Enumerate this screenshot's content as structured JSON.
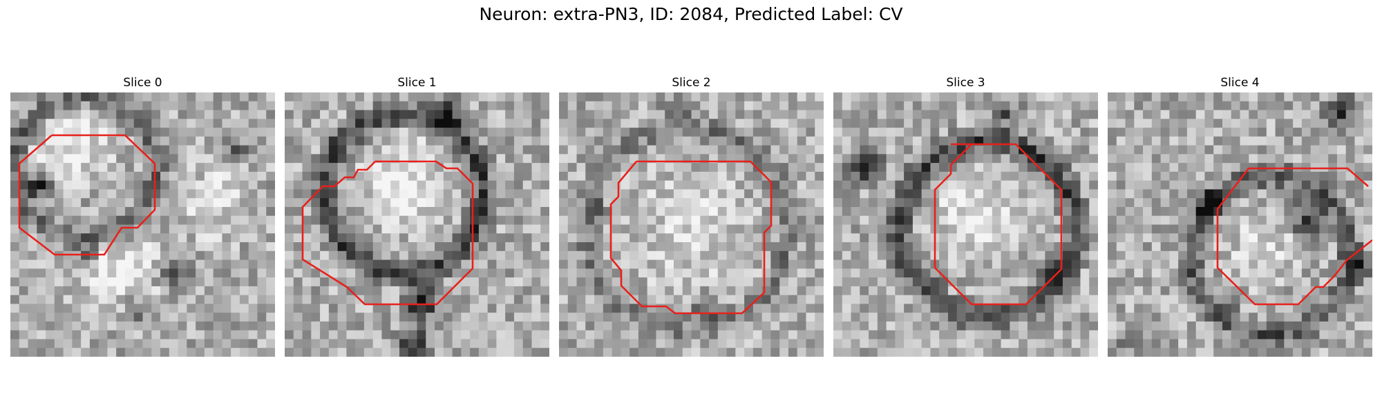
{
  "figure": {
    "title": "Neuron: extra-PN3, ID: 2084, Predicted Label: CV"
  },
  "panels": [
    {
      "title": "Slice 0"
    },
    {
      "title": "Slice 1"
    },
    {
      "title": "Slice 2"
    },
    {
      "title": "Slice 3"
    },
    {
      "title": "Slice 4"
    }
  ],
  "colors": {
    "contour": "#e8201b",
    "background": "#ffffff"
  }
}
